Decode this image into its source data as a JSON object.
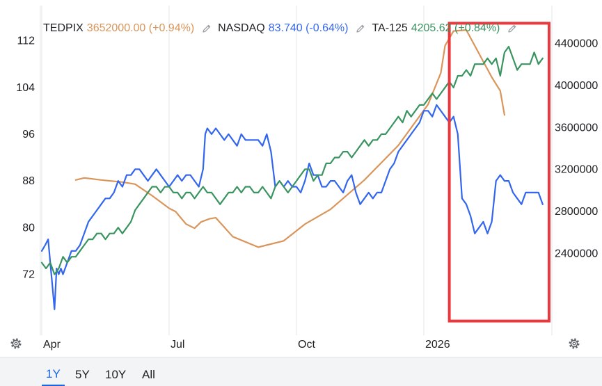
{
  "legend": [
    {
      "name": "TEDPIX",
      "value": "3652000.00 (+0.94%)",
      "color": "#d9955a"
    },
    {
      "name": "NASDAQ",
      "value": "83.740 (-0.64%)",
      "color": "#3366ee"
    },
    {
      "name": "TA-125",
      "value": "4205.62 (+0.84%)",
      "color": "#3a9460"
    }
  ],
  "range_buttons": [
    "1Y",
    "5Y",
    "10Y",
    "All"
  ],
  "active_range": "1Y",
  "highlight_color": "#e8393f",
  "chart_data": {
    "type": "line",
    "title": "",
    "x_tick_labels": [
      "Apr",
      "Jul",
      "Oct",
      "2026"
    ],
    "x_ticks": [
      0,
      3,
      6,
      9
    ],
    "xlim": [
      0,
      12
    ],
    "left_axis": {
      "ylim": [
        63,
        116
      ],
      "ticks": [
        72,
        80,
        88,
        96,
        104,
        112
      ]
    },
    "right_axis": {
      "ylim": [
        1700000,
        4650000
      ],
      "ticks": [
        2400000,
        2800000,
        3200000,
        3600000,
        4000000,
        4400000
      ]
    },
    "series": [
      {
        "name": "TEDPIX",
        "axis": "right",
        "color": "#d9955a",
        "x": [
          0.8,
          1.0,
          1.4,
          1.9,
          2.2,
          2.6,
          3.0,
          3.15,
          3.4,
          3.6,
          3.75,
          3.95,
          4.1,
          4.5,
          5.1,
          5.7,
          6.2,
          6.8,
          7.6,
          8.4,
          9.1,
          9.4,
          9.5,
          9.7,
          10.0,
          10.6,
          10.8,
          10.9
        ],
        "values": [
          3100000,
          3120000,
          3100000,
          3080000,
          3060000,
          2950000,
          2830000,
          2800000,
          2680000,
          2640000,
          2700000,
          2730000,
          2740000,
          2560000,
          2460000,
          2520000,
          2680000,
          2820000,
          3100000,
          3430000,
          3820000,
          4120000,
          4380000,
          4520000,
          4530000,
          4080000,
          3950000,
          3720000
        ]
      },
      {
        "name": "NASDAQ",
        "axis": "left",
        "color": "#3366ee",
        "x": [
          0.0,
          0.08,
          0.15,
          0.2,
          0.25,
          0.3,
          0.35,
          0.4,
          0.45,
          0.5,
          0.6,
          0.7,
          0.8,
          0.9,
          1.0,
          1.1,
          1.2,
          1.3,
          1.4,
          1.5,
          1.6,
          1.7,
          1.8,
          1.9,
          2.0,
          2.1,
          2.2,
          2.3,
          2.4,
          2.5,
          2.6,
          2.7,
          2.8,
          2.9,
          3.0,
          3.1,
          3.2,
          3.3,
          3.4,
          3.5,
          3.6,
          3.7,
          3.8,
          3.85,
          3.9,
          4.0,
          4.1,
          4.2,
          4.3,
          4.4,
          4.5,
          4.6,
          4.7,
          4.8,
          4.9,
          5.0,
          5.1,
          5.2,
          5.3,
          5.4,
          5.5,
          5.6,
          5.7,
          5.8,
          5.9,
          6.0,
          6.1,
          6.2,
          6.3,
          6.4,
          6.5,
          6.6,
          6.7,
          6.8,
          6.9,
          7.0,
          7.1,
          7.2,
          7.3,
          7.4,
          7.5,
          7.6,
          7.7,
          7.8,
          7.9,
          8.0,
          8.1,
          8.2,
          8.3,
          8.4,
          8.5,
          8.6,
          8.7,
          8.8,
          8.9,
          9.0,
          9.1,
          9.2,
          9.3,
          9.4,
          9.5,
          9.6,
          9.7,
          9.8,
          9.9,
          10.0,
          10.1,
          10.2,
          10.3,
          10.4,
          10.5,
          10.6,
          10.7,
          10.8,
          10.9,
          11.0,
          11.1,
          11.2,
          11.3,
          11.4,
          11.5,
          11.6,
          11.7,
          11.8
        ],
        "values": [
          76,
          77,
          78,
          74,
          70,
          66,
          73,
          72,
          73,
          72,
          74,
          76,
          76,
          77,
          79,
          81,
          82,
          83,
          84,
          85,
          85,
          86,
          88,
          87,
          89,
          89,
          90,
          90,
          89,
          88,
          89,
          90,
          89,
          88,
          87,
          88,
          89,
          88,
          89,
          89,
          88,
          87,
          90,
          96,
          97,
          96,
          97,
          96,
          95,
          96,
          95,
          94,
          96,
          95,
          95,
          95,
          95,
          94,
          96,
          93,
          87,
          88,
          87,
          88,
          87,
          87,
          86,
          88,
          91,
          89,
          89,
          87,
          87,
          88,
          88,
          87,
          86,
          88,
          89,
          86,
          84,
          85,
          86,
          85,
          86,
          86,
          88,
          90,
          91,
          93,
          94,
          95,
          96,
          97,
          98,
          100,
          100,
          99,
          101,
          100,
          99,
          98,
          99,
          96,
          85,
          84,
          82,
          79,
          80,
          81,
          79,
          81,
          88,
          89,
          88,
          88,
          86,
          85,
          84,
          86,
          86,
          86,
          86,
          84
        ]
      },
      {
        "name": "TA-125",
        "axis": "left",
        "color": "#3a9460",
        "x": [
          0.0,
          0.1,
          0.2,
          0.3,
          0.4,
          0.5,
          0.6,
          0.7,
          0.8,
          0.9,
          1.0,
          1.1,
          1.2,
          1.3,
          1.4,
          1.5,
          1.6,
          1.7,
          1.8,
          1.9,
          2.0,
          2.1,
          2.2,
          2.3,
          2.4,
          2.5,
          2.6,
          2.7,
          2.8,
          2.9,
          3.0,
          3.1,
          3.2,
          3.3,
          3.4,
          3.5,
          3.6,
          3.7,
          3.8,
          3.9,
          4.0,
          4.1,
          4.2,
          4.3,
          4.4,
          4.5,
          4.6,
          4.7,
          4.8,
          4.9,
          5.0,
          5.1,
          5.2,
          5.3,
          5.4,
          5.5,
          5.6,
          5.7,
          5.8,
          5.9,
          6.0,
          6.1,
          6.2,
          6.3,
          6.4,
          6.5,
          6.6,
          6.7,
          6.8,
          6.9,
          7.0,
          7.1,
          7.2,
          7.3,
          7.4,
          7.5,
          7.6,
          7.7,
          7.8,
          7.9,
          8.0,
          8.1,
          8.2,
          8.3,
          8.4,
          8.5,
          8.6,
          8.7,
          8.8,
          8.9,
          9.0,
          9.1,
          9.2,
          9.3,
          9.4,
          9.5,
          9.6,
          9.7,
          9.8,
          9.9,
          10.0,
          10.1,
          10.2,
          10.3,
          10.4,
          10.5,
          10.6,
          10.7,
          10.8,
          10.9,
          11.0,
          11.1,
          11.2,
          11.3,
          11.4,
          11.5,
          11.6,
          11.7,
          11.8
        ],
        "values": [
          74,
          73,
          74,
          72,
          73,
          75,
          74,
          75,
          75,
          76,
          77,
          78,
          78,
          79,
          79,
          78,
          79,
          79,
          80,
          79,
          80,
          81,
          83,
          84,
          85,
          86,
          87,
          87,
          86,
          87,
          87,
          86,
          86,
          85,
          86,
          86,
          85,
          86,
          87,
          86,
          86,
          85,
          84,
          85,
          86,
          86,
          87,
          86,
          87,
          87,
          86,
          86,
          87,
          86,
          85,
          87,
          88,
          87,
          86,
          87,
          88,
          89,
          90,
          90,
          88,
          89,
          89,
          91,
          91,
          92,
          92,
          93,
          93,
          92,
          93,
          94,
          95,
          94,
          95,
          95,
          96,
          96,
          97,
          98,
          99,
          98,
          100,
          99,
          100,
          101,
          101,
          102,
          103,
          102,
          103,
          104,
          105,
          104,
          106,
          106,
          107,
          106,
          108,
          108,
          108,
          109,
          108,
          109,
          106,
          110,
          111,
          109,
          107,
          108,
          108,
          108,
          110,
          108,
          109
        ]
      }
    ],
    "annotations": [
      {
        "type": "highlight-rectangle",
        "x_range": [
          9.6,
          11.95
        ],
        "y_range": [
          64,
          115
        ],
        "axis": "left"
      }
    ]
  }
}
